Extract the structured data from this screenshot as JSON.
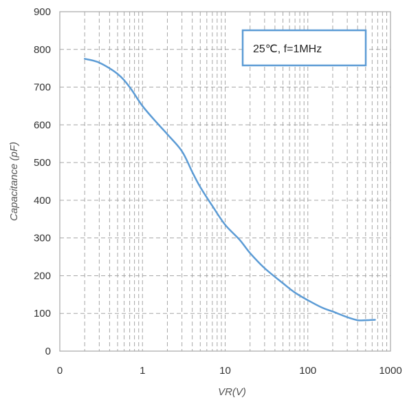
{
  "chart_data": {
    "type": "line",
    "xlabel": "VR(V)",
    "ylabel": "Capacitance (pF)",
    "x_scale": "log",
    "xlim": [
      0.1,
      1000
    ],
    "ylim": [
      0,
      900
    ],
    "x_ticks": [
      {
        "value": 0.1,
        "label": "0"
      },
      {
        "value": 1,
        "label": "1"
      },
      {
        "value": 10,
        "label": "10"
      },
      {
        "value": 100,
        "label": "100"
      },
      {
        "value": 1000,
        "label": "1000"
      }
    ],
    "y_ticks": [
      0,
      100,
      200,
      300,
      400,
      500,
      600,
      700,
      800,
      900
    ],
    "grid": true,
    "annotation": "25℃, f=1MHz",
    "legend_position": "top-right",
    "colors": {
      "line": "#5b9bd5",
      "annotation_border": "#5b9bd5",
      "grid": "#a6a6a6",
      "axis": "#a6a6a6"
    },
    "series": [
      {
        "x": [
          0.2,
          0.3,
          0.5,
          0.7,
          1,
          1.5,
          2,
          3,
          4,
          5,
          7,
          10,
          15,
          20,
          30,
          50,
          70,
          100,
          150,
          200,
          300,
          400,
          500,
          650
        ],
        "values": [
          775,
          765,
          735,
          700,
          650,
          605,
          575,
          530,
          475,
          435,
          385,
          335,
          295,
          260,
          220,
          180,
          155,
          135,
          115,
          105,
          90,
          82,
          82,
          83
        ]
      }
    ]
  }
}
